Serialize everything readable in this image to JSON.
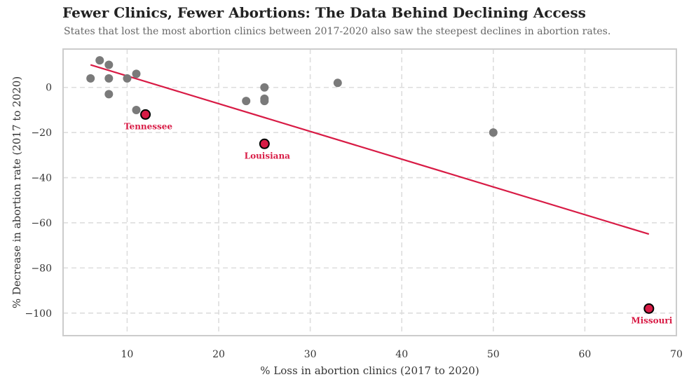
{
  "chart_data": {
    "type": "scatter",
    "title": "Fewer Clinics, Fewer Abortions: The Data Behind Declining Access",
    "subtitle": "States that lost the most abortion clinics between 2017-2020 also saw the steepest declines in abortion rates.",
    "xlabel": "% Loss in abortion clinics (2017 to 2020)",
    "ylabel": "% Decrease in abortion rate (2017 to 2020)",
    "xlim": [
      3,
      70
    ],
    "ylim": [
      -110,
      17
    ],
    "xticks": [
      10,
      20,
      30,
      40,
      50,
      60,
      70
    ],
    "yticks": [
      0,
      -20,
      -40,
      -60,
      -80,
      -100
    ],
    "grid": true,
    "colors": {
      "points": "#7a7a7a",
      "highlight": "#d81b45",
      "trend": "#d81b45",
      "grid": "#dddddd",
      "frame": "#cccccc"
    },
    "points": [
      {
        "x": 6,
        "y": 4
      },
      {
        "x": 7,
        "y": 12
      },
      {
        "x": 8,
        "y": 10
      },
      {
        "x": 8,
        "y": 4
      },
      {
        "x": 8,
        "y": -3
      },
      {
        "x": 10,
        "y": 4
      },
      {
        "x": 11,
        "y": 6
      },
      {
        "x": 11,
        "y": -10
      },
      {
        "x": 23,
        "y": -6
      },
      {
        "x": 25,
        "y": 0
      },
      {
        "x": 25,
        "y": -5
      },
      {
        "x": 25,
        "y": -6
      },
      {
        "x": 33,
        "y": 2
      },
      {
        "x": 50,
        "y": -20
      }
    ],
    "highlights": [
      {
        "label": "Tennessee",
        "x": 12,
        "y": -12
      },
      {
        "label": "Louisiana",
        "x": 25,
        "y": -25
      },
      {
        "label": "Missouri",
        "x": 67,
        "y": -98
      }
    ],
    "trendline": {
      "x": [
        6,
        67
      ],
      "y": [
        10,
        -65
      ]
    }
  }
}
